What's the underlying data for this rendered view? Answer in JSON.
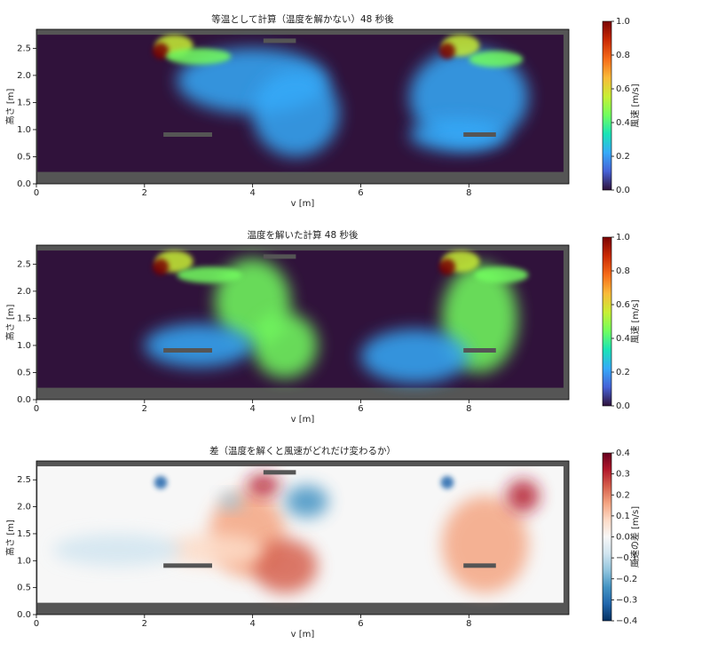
{
  "chart_data": [
    {
      "type": "heatmap",
      "title": "等温として計算（温度を解かない）48 秒後",
      "x_label": "v [m]",
      "y_label": "高さ [m]",
      "xlim": [
        0,
        9.85
      ],
      "ylim": [
        0,
        2.85
      ],
      "xticks": [
        0,
        2,
        4,
        6,
        8
      ],
      "yticks": [
        {
          "value": 0,
          "label": "0.0"
        },
        0.5,
        {
          "value": 1,
          "label": "1.0"
        },
        1.5,
        {
          "value": 2,
          "label": "2.0"
        },
        2.5
      ],
      "colorbar_label": "風速 [m/s]",
      "clim": [
        0,
        1
      ],
      "cticks": [
        {
          "value": 0,
          "label": "0.0"
        },
        0.2,
        0.4,
        0.6,
        0.8,
        {
          "value": 1,
          "label": "1.0"
        }
      ],
      "colormap": [
        "#30123b",
        "#4662d7",
        "#36aaf9",
        "#1ae4b6",
        "#72fe5e",
        "#c8ef34",
        "#faba39",
        "#f66b19",
        "#ca2a04",
        "#7a0403"
      ]
    },
    {
      "type": "heatmap",
      "title": "温度を解いた計算 48 秒後",
      "x_label": "v [m]",
      "y_label": "高さ [m]",
      "xlim": [
        0,
        9.85
      ],
      "ylim": [
        0,
        2.85
      ],
      "xticks": [
        0,
        2,
        4,
        6,
        8
      ],
      "yticks": [
        {
          "value": 0,
          "label": "0.0"
        },
        0.5,
        {
          "value": 1,
          "label": "1.0"
        },
        1.5,
        {
          "value": 2,
          "label": "2.0"
        },
        2.5
      ],
      "colorbar_label": "風速 [m/s]",
      "clim": [
        0,
        1
      ],
      "cticks": [
        {
          "value": 0,
          "label": "0.0"
        },
        0.2,
        0.4,
        0.6,
        0.8,
        {
          "value": 1,
          "label": "1.0"
        }
      ],
      "colormap": [
        "#30123b",
        "#4662d7",
        "#36aaf9",
        "#1ae4b6",
        "#72fe5e",
        "#c8ef34",
        "#faba39",
        "#f66b19",
        "#ca2a04",
        "#7a0403"
      ]
    },
    {
      "type": "heatmap",
      "title": "差（温度を解くと風速がどれだけ変わるか）",
      "x_label": "v [m]",
      "y_label": "高さ [m]",
      "xlim": [
        0,
        9.85
      ],
      "ylim": [
        0,
        2.85
      ],
      "xticks": [
        0,
        2,
        4,
        6,
        8
      ],
      "yticks": [
        {
          "value": 0,
          "label": "0.0"
        },
        0.5,
        {
          "value": 1,
          "label": "1.0"
        },
        1.5,
        {
          "value": 2,
          "label": "2.0"
        },
        2.5
      ],
      "colorbar_label": "風速の差 [m/s]",
      "clim": [
        -0.4,
        0.4
      ],
      "cticks": [
        {
          "value": -0.4,
          "label": "−0.4"
        },
        {
          "value": -0.3,
          "label": "−0.3"
        },
        {
          "value": -0.2,
          "label": "−0.2"
        },
        {
          "value": -0.1,
          "label": "−0.1"
        },
        {
          "value": 0,
          "label": "0.0"
        },
        0.1,
        0.2,
        0.3,
        0.4
      ],
      "colormap": [
        "#053061",
        "#2166ac",
        "#4393c3",
        "#92c5de",
        "#d1e5f0",
        "#f7f7f7",
        "#fddbc7",
        "#f4a582",
        "#d6604d",
        "#b2182b",
        "#67001f"
      ]
    }
  ]
}
